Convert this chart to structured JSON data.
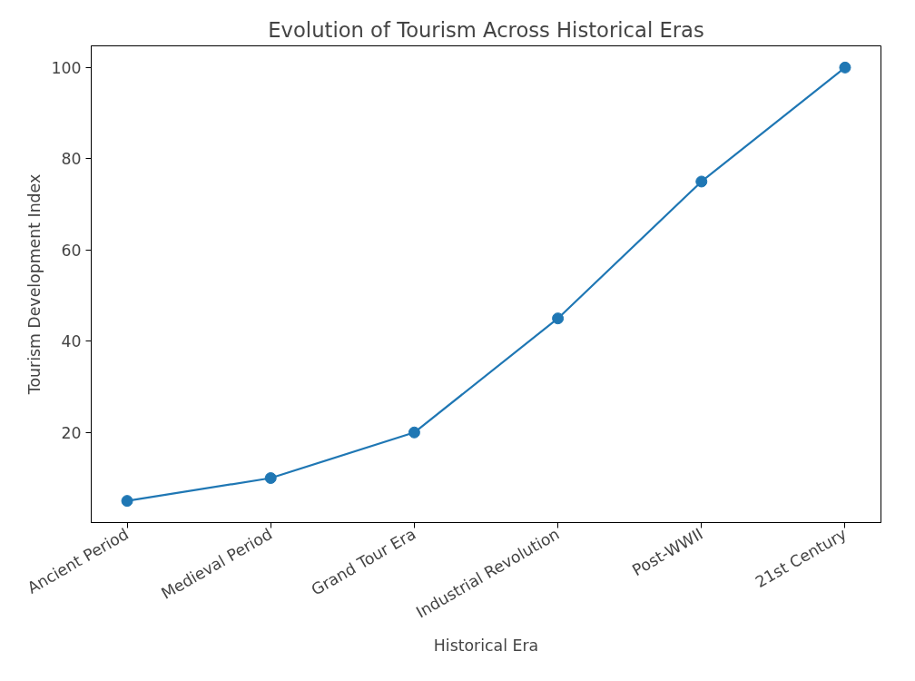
{
  "chart_data": {
    "type": "line",
    "title": "Evolution of Tourism Across Historical Eras",
    "xlabel": "Historical Era",
    "ylabel": "Tourism Development Index",
    "categories": [
      "Ancient Period",
      "Medieval Period",
      "Grand Tour Era",
      "Industrial Revolution",
      "Post-WWII",
      "21st Century"
    ],
    "values": [
      5,
      10,
      20,
      45,
      75,
      100
    ],
    "color": "#1f77b4",
    "ylim": [
      0.25,
      104.75
    ],
    "yticks": [
      20,
      40,
      60,
      80,
      100
    ],
    "grid": false,
    "marker": "circle",
    "line_style": "solid"
  }
}
